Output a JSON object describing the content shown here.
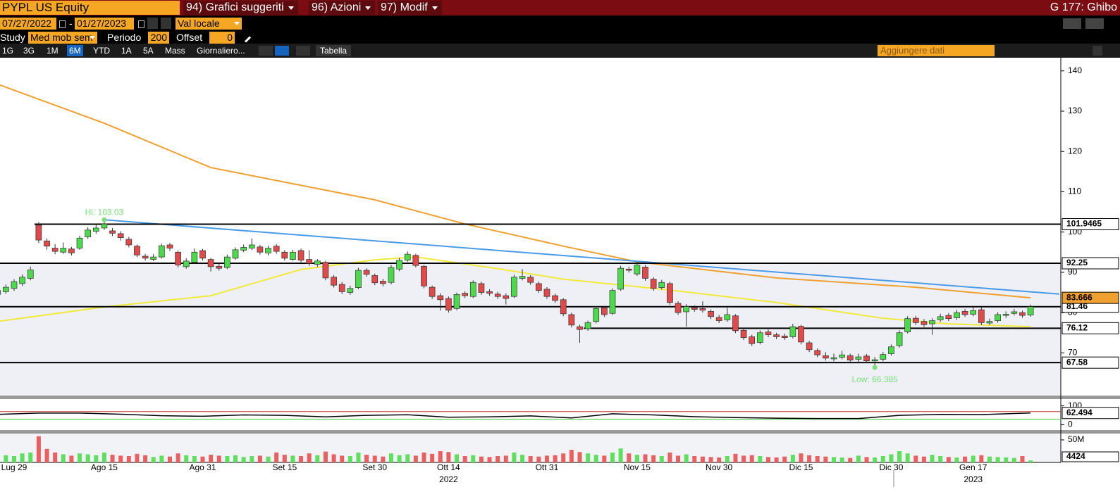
{
  "toolbar": {
    "ticker": "PYPL US Equity",
    "menus": [
      "94) Grafici suggeriti",
      "96) Azioni",
      "97) Modif"
    ],
    "page": "G 177: Ghibo",
    "start_date": "07/27/2022",
    "date_separator": "-",
    "end_date": "01/27/2023",
    "currency": "Val locale",
    "study_label": "Study",
    "study": "Med mob sem",
    "period_label": "Periodo",
    "period": 200,
    "offset_label": "Offset",
    "offset": 0,
    "ranges": [
      "1G",
      "3G",
      "1M",
      "6M",
      "YTD",
      "1A",
      "5A",
      "Mass"
    ],
    "selected_range": "6M",
    "frequency": "Giornaliero...",
    "table": "Tabella",
    "add_data": "Aggiungere dati"
  },
  "chart_data": {
    "type": "candlestick",
    "up_color": "#4cd94c",
    "down_color": "#e04a4a",
    "categories": [
      null,
      null,
      "Lug 29",
      null,
      null,
      null,
      null,
      null,
      null,
      null,
      null,
      null,
      null,
      "Ago 15",
      null,
      null,
      null,
      null,
      null,
      null,
      null,
      null,
      null,
      null,
      null,
      "Ago 31",
      null,
      null,
      null,
      null,
      null,
      null,
      null,
      null,
      null,
      "Set 15",
      null,
      null,
      null,
      null,
      null,
      null,
      null,
      null,
      null,
      null,
      "Set 30",
      null,
      null,
      null,
      null,
      null,
      null,
      null,
      null,
      "Ott 14",
      null,
      null,
      null,
      null,
      null,
      null,
      null,
      null,
      null,
      null,
      null,
      "Ott 31",
      null,
      null,
      null,
      null,
      null,
      null,
      null,
      null,
      null,
      null,
      "Nov 15",
      null,
      null,
      null,
      null,
      null,
      null,
      null,
      null,
      null,
      "Nov 30",
      null,
      null,
      null,
      null,
      null,
      null,
      null,
      null,
      null,
      "Dic 15",
      null,
      null,
      null,
      null,
      null,
      null,
      null,
      null,
      null,
      null,
      "Dic 30",
      null,
      null,
      null,
      null,
      null,
      null,
      null,
      null,
      null,
      "Gen 17",
      null,
      null,
      null,
      null,
      null,
      null,
      null
    ],
    "year_labels": [
      {
        "value": 55,
        "label": "2022"
      },
      {
        "value": 119,
        "label": "2023"
      }
    ],
    "open": [
      84.5,
      85.2,
      86.0,
      87.2,
      88.5,
      101.7,
      97.8,
      96.0,
      95.0,
      95.8,
      96.0,
      98.8,
      100.2,
      101.0,
      100.3,
      99.6,
      98.2,
      96.5,
      94.0,
      93.2,
      93.8,
      96.8,
      95.0,
      91.4,
      92.5,
      95.4,
      93.2,
      91.5,
      91.2,
      93.5,
      95.5,
      96.0,
      96.3,
      94.8,
      96.5,
      95.0,
      93.2,
      95.4,
      93.2,
      92.0,
      92.5,
      88.8,
      87.0,
      85.0,
      86.2,
      90.5,
      89.2,
      87.8,
      87.5,
      90.8,
      93.0,
      94.2,
      91.5,
      86.3,
      84.2,
      83.5,
      81.0,
      84.8,
      84.0,
      87.2,
      85.2,
      84.6,
      84.2,
      84.0,
      88.5,
      88.8,
      87.2,
      85.8,
      84.2,
      83.2,
      79.5,
      76.5,
      76.0,
      77.8,
      81.2,
      79.8,
      85.8,
      90.8,
      89.6,
      91.3,
      88.3,
      86.2,
      87.2,
      82.3,
      80.2,
      81.2,
      81.0,
      80.3,
      78.8,
      78.2,
      79.2,
      75.6,
      74.0,
      72.6,
      75.2,
      74.5,
      74.2,
      74.0,
      76.6,
      72.5,
      70.6,
      69.3,
      68.5,
      68.9,
      69.3,
      68.4,
      69.2,
      68.0,
      68.4,
      69.8,
      71.8,
      75.2,
      78.6,
      77.8,
      77.2,
      78.2,
      79.3,
      78.7,
      80.3,
      79.6,
      80.7,
      77.4,
      78.0,
      79.3,
      79.8,
      80.0,
      79.4
    ],
    "high": [
      86.2,
      87.0,
      88.3,
      89.5,
      91.4,
      102.5,
      98.4,
      97.0,
      97.4,
      96.3,
      99.1,
      101.2,
      101.8,
      103.03,
      101.0,
      100.2,
      98.8,
      96.9,
      94.6,
      94.5,
      97.1,
      97.3,
      95.4,
      93.5,
      95.9,
      95.8,
      93.6,
      92.1,
      94.4,
      96.2,
      96.9,
      98.4,
      96.8,
      96.6,
      97.0,
      95.5,
      95.6,
      95.9,
      95.5,
      93.3,
      92.9,
      89.3,
      87.6,
      86.7,
      91.1,
      91.0,
      89.7,
      88.4,
      91.8,
      93.6,
      95.2,
      94.6,
      91.9,
      86.7,
      84.8,
      84.0,
      85.0,
      85.3,
      88.0,
      87.7,
      85.8,
      85.2,
      84.8,
      89.4,
      90.8,
      89.3,
      87.7,
      86.3,
      84.7,
      83.6,
      80.0,
      77.0,
      78.0,
      81.6,
      81.7,
      86.0,
      91.6,
      91.4,
      92.6,
      91.8,
      88.8,
      88.1,
      87.7,
      82.8,
      82.1,
      81.8,
      82.8,
      80.8,
      79.4,
      81.2,
      79.6,
      76.1,
      74.5,
      75.6,
      75.8,
      75.0,
      74.8,
      77.2,
      77.0,
      73.0,
      71.1,
      70.2,
      69.8,
      70.5,
      69.8,
      69.8,
      69.7,
      69.0,
      70.2,
      72.1,
      75.6,
      79.1,
      79.2,
      78.4,
      78.6,
      79.7,
      79.9,
      80.7,
      80.9,
      81.4,
      81.3,
      78.5,
      80.1,
      80.3,
      80.9,
      80.5,
      82.0
    ],
    "low": [
      83.9,
      84.6,
      85.4,
      86.6,
      88.0,
      97.3,
      95.6,
      94.5,
      94.6,
      94.2,
      95.6,
      98.3,
      99.6,
      100.5,
      99.0,
      97.9,
      96.2,
      93.8,
      92.9,
      92.8,
      93.4,
      95.3,
      91.2,
      90.9,
      92.1,
      92.9,
      90.2,
      90.4,
      90.8,
      93.1,
      95.0,
      95.5,
      94.4,
      94.2,
      94.6,
      92.9,
      92.8,
      92.5,
      91.6,
      91.3,
      88.0,
      86.2,
      84.6,
      84.4,
      85.8,
      88.9,
      86.8,
      86.5,
      87.0,
      90.3,
      92.6,
      91.2,
      86.0,
      83.4,
      80.5,
      80.0,
      80.6,
      83.6,
      83.6,
      84.4,
      84.2,
      83.4,
      82.0,
      83.6,
      88.0,
      86.9,
      84.9,
      83.4,
      82.4,
      79.1,
      76.3,
      72.5,
      75.5,
      77.3,
      78.9,
      79.4,
      85.4,
      89.9,
      89.1,
      87.9,
      85.4,
      85.7,
      81.9,
      79.4,
      76.5,
      80.2,
      80.0,
      78.4,
      77.4,
      77.7,
      74.9,
      73.2,
      71.7,
      72.1,
      73.9,
      73.4,
      73.2,
      73.6,
      72.1,
      70.2,
      68.9,
      68.1,
      67.9,
      68.4,
      67.6,
      67.4,
      67.4,
      66.385,
      67.9,
      69.3,
      71.3,
      74.8,
      76.9,
      76.4,
      74.5,
      77.7,
      77.9,
      78.2,
      78.9,
      79.1,
      76.9,
      76.9,
      77.5,
      78.7,
      79.3,
      78.7,
      79.0
    ],
    "close": [
      85.5,
      86.3,
      87.7,
      88.8,
      90.6,
      98.0,
      96.5,
      95.2,
      96.0,
      94.8,
      98.5,
      100.5,
      101.0,
      102.0,
      99.7,
      98.6,
      96.8,
      94.3,
      93.5,
      93.8,
      96.6,
      96.0,
      91.8,
      92.8,
      95.0,
      93.5,
      91.4,
      91.0,
      93.8,
      95.6,
      96.2,
      96.8,
      95.0,
      96.0,
      95.2,
      93.5,
      95.0,
      93.0,
      92.2,
      92.8,
      88.6,
      86.8,
      85.2,
      86.0,
      90.5,
      89.5,
      87.4,
      87.2,
      91.2,
      93.0,
      94.5,
      91.7,
      86.6,
      84.0,
      83.2,
      80.6,
      84.5,
      84.2,
      87.5,
      85.0,
      84.8,
      84.0,
      83.5,
      88.8,
      89.0,
      87.5,
      85.5,
      84.0,
      83.0,
      79.7,
      76.9,
      75.8,
      77.5,
      81.0,
      79.5,
      85.5,
      91.0,
      90.5,
      91.8,
      88.5,
      86.0,
      87.5,
      82.5,
      80.0,
      81.5,
      80.8,
      80.6,
      79.0,
      78.0,
      79.5,
      75.5,
      73.8,
      72.3,
      75.0,
      74.5,
      74.0,
      73.8,
      76.5,
      72.7,
      70.8,
      69.5,
      68.7,
      68.8,
      69.5,
      68.2,
      69.0,
      68.0,
      68.3,
      69.6,
      71.5,
      75.0,
      78.5,
      77.5,
      77.0,
      78.0,
      79.0,
      78.5,
      80.0,
      79.5,
      80.5,
      77.5,
      77.8,
      79.5,
      79.6,
      80.2,
      79.3,
      81.46
    ],
    "ylim": [
      59.4,
      143.1
    ],
    "yticks": [
      70,
      80,
      90,
      100,
      110,
      120,
      130,
      140
    ],
    "levels": [
      {
        "value": 101.9465,
        "start": 5
      },
      {
        "value": 92.25,
        "start": 0
      },
      {
        "value": 81.46,
        "start": 0
      },
      {
        "value": 76.12,
        "start": 72
      },
      {
        "value": 67.58,
        "start": 0
      }
    ],
    "lines": [
      {
        "color": "#f0a030",
        "x": [
          0,
          13,
          26,
          46,
          57,
          69,
          78,
          95,
          112,
          126
        ],
        "values": [
          136.7,
          127,
          116,
          108,
          102,
          96.5,
          92.6,
          88.6,
          86.3,
          83.666
        ],
        "end_label": true
      },
      {
        "color": "#f2ea3a",
        "x": [
          0,
          13,
          26,
          37,
          46,
          51,
          61,
          69,
          82,
          95,
          108,
          116,
          126
        ],
        "values": [
          77.8,
          81.4,
          84.2,
          90.7,
          93.1,
          93.8,
          90.9,
          88.3,
          85.6,
          82.5,
          78.6,
          77.2,
          76.5
        ]
      },
      {
        "color": "#4a9be8",
        "x": [
          13,
          129.5
        ],
        "values": [
          103.03,
          84.6
        ]
      }
    ],
    "annotations": [
      {
        "text": "Hi: 103.03",
        "index": 13,
        "at": "high"
      },
      {
        "text": "Low: 66.385",
        "index": 107,
        "at": "low"
      }
    ],
    "rsi": {
      "x": [
        0,
        5,
        10,
        15,
        20,
        25,
        30,
        35,
        40,
        45,
        50,
        55,
        60,
        65,
        70,
        75,
        80,
        85,
        90,
        95,
        100,
        105,
        110,
        115,
        120,
        126
      ],
      "values": [
        55,
        62,
        62,
        56,
        48,
        45,
        52,
        50,
        42,
        50,
        53,
        40,
        42,
        47,
        36,
        58,
        52,
        43,
        38,
        35,
        33,
        33,
        50,
        55,
        54,
        62.494
      ],
      "ylim": [
        -28,
        136
      ],
      "yticks": [
        0,
        100
      ],
      "levels": [
        {
          "value": 70,
          "color": "#c0392b"
        },
        {
          "value": 30,
          "color": "#33cc33"
        }
      ]
    },
    "volume": {
      "values": [
        18000,
        16000,
        14000,
        20000,
        22000,
        58000,
        30000,
        22000,
        18000,
        15000,
        20000,
        18000,
        16000,
        22000,
        17000,
        15000,
        14000,
        19000,
        16000,
        12000,
        15000,
        13000,
        20000,
        16000,
        14000,
        13000,
        17000,
        15000,
        14000,
        16000,
        12000,
        14000,
        15000,
        13000,
        22000,
        17000,
        15000,
        14000,
        20000,
        16000,
        24000,
        18000,
        15000,
        14000,
        22000,
        17000,
        15000,
        13000,
        20000,
        16000,
        18000,
        15000,
        22000,
        19000,
        25000,
        23000,
        18000,
        14000,
        16000,
        13000,
        12000,
        14000,
        15000,
        22000,
        17000,
        14000,
        13000,
        15000,
        16000,
        20000,
        28000,
        23000,
        20000,
        17000,
        15000,
        22000,
        31000,
        20000,
        17000,
        18000,
        16000,
        14000,
        22000,
        15000,
        18000,
        14000,
        13000,
        12000,
        11000,
        14000,
        19000,
        15000,
        16000,
        14000,
        12000,
        11000,
        13000,
        17000,
        20000,
        16000,
        14000,
        13000,
        12000,
        11000,
        10000,
        15000,
        12000,
        11000,
        14000,
        18000,
        25000,
        20000,
        15000,
        13000,
        17000,
        14000,
        12000,
        11000,
        13000,
        15000,
        16000,
        13000,
        12000,
        11000,
        10000,
        14000,
        4424
      ],
      "ylim": [
        0,
        64000
      ],
      "yticks": [
        {
          "value": 50000,
          "label": "50M"
        }
      ]
    }
  }
}
